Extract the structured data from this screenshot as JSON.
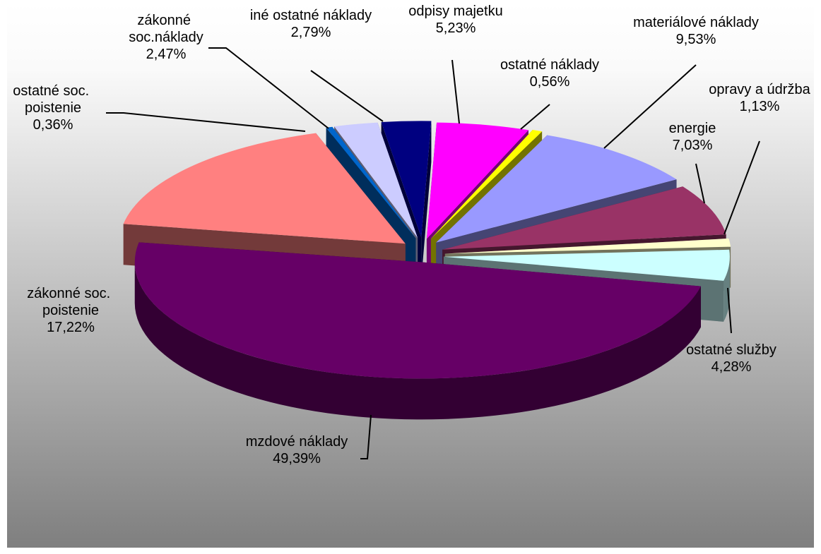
{
  "chart_data": {
    "type": "pie3d",
    "categories": [
      "odpisy majetku",
      "ostatné náklady",
      "materiálové náklady",
      "energie",
      "opravy a údržba",
      "ostatné služby",
      "mzdové náklady",
      "zákonné soc. poistenie",
      "ostatné soc. poistenie",
      "zákonné soc.náklady",
      "iné ostatné náklady"
    ],
    "values": [
      5.23,
      0.56,
      9.53,
      7.03,
      1.13,
      4.28,
      49.39,
      17.22,
      0.36,
      2.47,
      2.79
    ],
    "value_labels": [
      "5,23%",
      "0,56%",
      "9,53%",
      "7,03%",
      "1,13%",
      "4,28%",
      "49,39%",
      "17,22%",
      "0,36%",
      "2,47%",
      "2,79%"
    ],
    "colors": [
      "#ff00ff",
      "#ffff00",
      "#9999ff",
      "#993366",
      "#ffffcc",
      "#ccffff",
      "#660066",
      "#ff8080",
      "#0066cc",
      "#ccccff",
      "#000080"
    ]
  }
}
